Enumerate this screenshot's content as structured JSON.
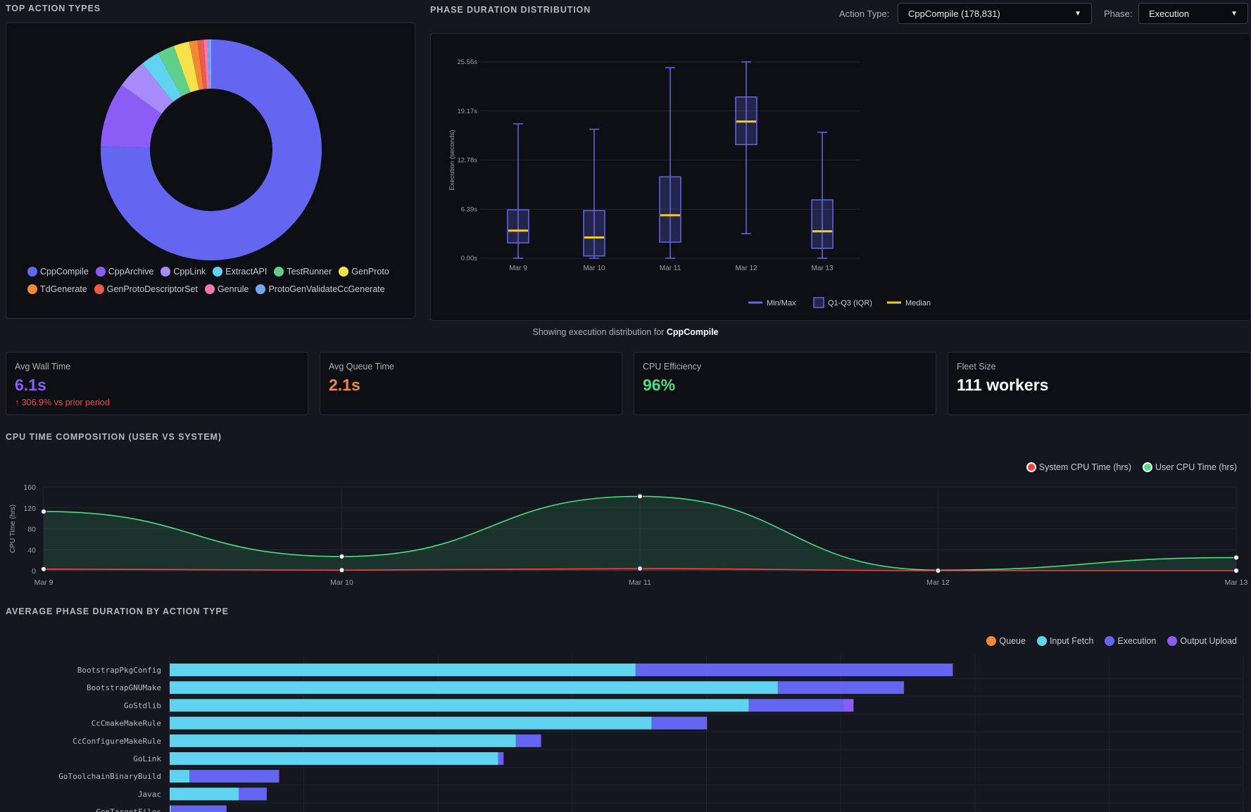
{
  "sections": {
    "top_action_types": "TOP ACTION TYPES",
    "phase_duration": "PHASE DURATION DISTRIBUTION",
    "cpu_composition": "CPU TIME COMPOSITION (USER VS SYSTEM)",
    "avg_phase": "AVERAGE PHASE DURATION BY ACTION TYPE"
  },
  "filters": {
    "action_type_label": "Action Type:",
    "action_type_value": "CppCompile (178,831)",
    "phase_label": "Phase:",
    "phase_value": "Execution"
  },
  "boxplot_caption": {
    "prefix": "Showing execution distribution for",
    "bold": "CppCompile"
  },
  "stats": [
    {
      "label": "Avg Wall Time",
      "value": "6.1s",
      "color": "#8b5cf6",
      "trend": "↑ 306.9% vs prior period"
    },
    {
      "label": "Avg Queue Time",
      "value": "2.1s",
      "color": "#f0883e",
      "trend": ""
    },
    {
      "label": "CPU Efficiency",
      "value": "96%",
      "color": "#4ade80",
      "trend": ""
    },
    {
      "label": "Fleet Size",
      "value": "111 workers",
      "color": "#ffffff",
      "trend": ""
    }
  ],
  "chart_data": [
    {
      "type": "pie",
      "donut": true,
      "slices": [
        {
          "name": "CppCompile",
          "value": 75.5,
          "color": "#6366f1"
        },
        {
          "name": "CppArchive",
          "value": 9.5,
          "color": "#8b5cf6"
        },
        {
          "name": "CppLink",
          "value": 4.3,
          "color": "#a78bfa"
        },
        {
          "name": "ExtractAPI",
          "value": 2.7,
          "color": "#60d3f0"
        },
        {
          "name": "TestRunner",
          "value": 2.5,
          "color": "#5fd08a"
        },
        {
          "name": "GenProto",
          "value": 2.3,
          "color": "#f9e14b"
        },
        {
          "name": "TdGenerate",
          "value": 1.2,
          "color": "#f28a33"
        },
        {
          "name": "GenProtoDescriptorSet",
          "value": 0.9,
          "color": "#ee5a4a"
        },
        {
          "name": "Genrule",
          "value": 0.6,
          "color": "#f178b6"
        },
        {
          "name": "ProtoGenValidateCcGenerate",
          "value": 0.5,
          "color": "#71a8f5"
        }
      ]
    },
    {
      "type": "box",
      "ylabel": "Execution (seconds)",
      "yticks": [
        "0.00s",
        "6.39s",
        "12.78s",
        "19.17s",
        "25.56s"
      ],
      "ylim": [
        0,
        25.56
      ],
      "categories": [
        "Mar 9",
        "Mar 10",
        "Mar 11",
        "Mar 12",
        "Mar 13"
      ],
      "boxes": [
        {
          "min": 0.0,
          "q1": 2.0,
          "median": 3.6,
          "q3": 6.3,
          "max": 17.5
        },
        {
          "min": 0.0,
          "q1": 0.3,
          "median": 2.7,
          "q3": 6.2,
          "max": 16.8
        },
        {
          "min": 0.0,
          "q1": 2.1,
          "median": 5.6,
          "q3": 10.6,
          "max": 24.8
        },
        {
          "min": 3.2,
          "q1": 14.8,
          "median": 17.8,
          "q3": 21.0,
          "max": 25.56
        },
        {
          "min": 0.0,
          "q1": 1.3,
          "median": 3.5,
          "q3": 7.6,
          "max": 16.4
        }
      ],
      "legend": [
        "Min/Max",
        "Q1-Q3 (IQR)",
        "Median"
      ],
      "color": "#6366f1",
      "median_color": "#facc15"
    },
    {
      "type": "area",
      "ylabel": "CPU Time (hrs)",
      "ylim": [
        0,
        160
      ],
      "yticks": [
        0,
        40,
        80,
        120,
        160
      ],
      "x": [
        "Mar 9",
        "Mar 10",
        "Mar 11",
        "Mar 12",
        "Mar 13"
      ],
      "series": [
        {
          "name": "System CPU Time (hrs)",
          "values": [
            3,
            1,
            4,
            0,
            0
          ],
          "color": "#ef4444"
        },
        {
          "name": "User CPU Time (hrs)",
          "values": [
            113,
            27,
            142,
            1,
            25
          ],
          "color": "#4ade80"
        }
      ]
    },
    {
      "type": "bar",
      "orientation": "horizontal",
      "stacked": true,
      "xlim": [
        0,
        2000
      ],
      "categories": [
        "BootstrapPkgConfig",
        "BootstrapGNUMake",
        "GoStdlib",
        "CcCmakeMakeRule",
        "CcConfigureMakeRule",
        "GoLink",
        "GoToolchainBinaryBuild",
        "Javac",
        "GenTargetFiles"
      ],
      "series": [
        {
          "name": "Queue",
          "color": "#f0883e",
          "values": [
            0,
            0,
            0,
            0,
            0,
            0,
            0,
            0,
            0
          ]
        },
        {
          "name": "Input Fetch",
          "color": "#60d3f0",
          "values": [
            868,
            1133,
            1079,
            898,
            645,
            612,
            37,
            129,
            2
          ]
        },
        {
          "name": "Execution",
          "color": "#6366f1",
          "values": [
            590,
            234,
            175,
            101,
            46,
            8,
            166,
            51,
            103
          ]
        },
        {
          "name": "Output Upload",
          "color": "#8b5cf6",
          "values": [
            1,
            1,
            20,
            2,
            1,
            2,
            1,
            1,
            1
          ]
        }
      ]
    }
  ]
}
